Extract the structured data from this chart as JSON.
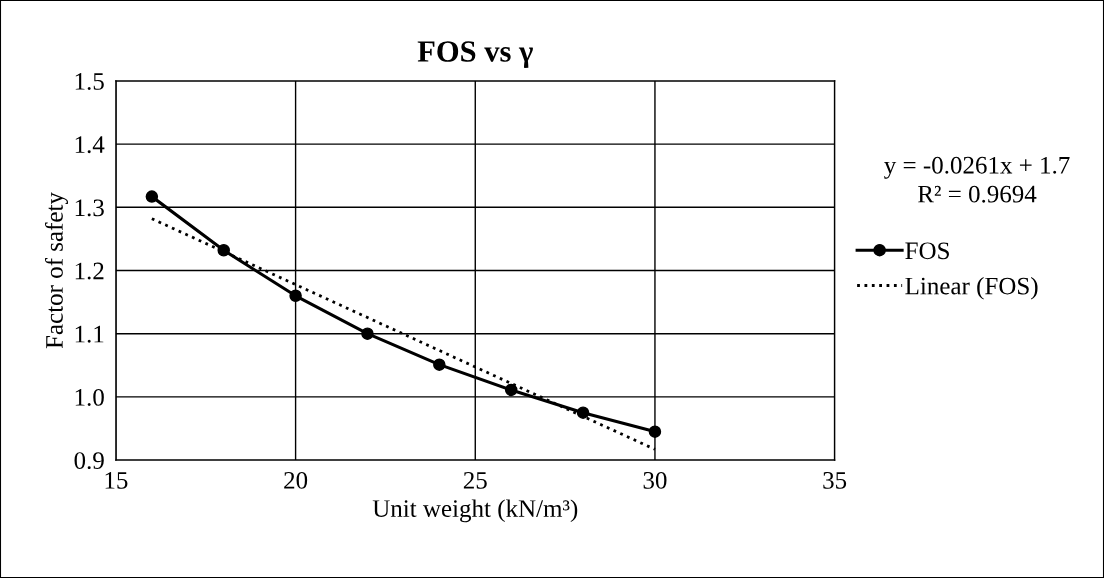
{
  "chart_data": {
    "type": "line",
    "title": "FOS vs γ",
    "xlabel": "Unit weight (kN/m³)",
    "ylabel": "Factor of safety",
    "series": [
      {
        "name": "FOS",
        "color": "#000000",
        "x": [
          16,
          18,
          20,
          22,
          24,
          26,
          28,
          30
        ],
        "values": [
          1.317,
          1.232,
          1.16,
          1.1,
          1.051,
          1.011,
          0.975,
          0.945
        ],
        "marker": "circle",
        "line_style": "solid"
      },
      {
        "name": "Linear (FOS)",
        "color": "#000000",
        "x": [
          16,
          30
        ],
        "values": [
          1.282,
          0.917
        ],
        "marker": "none",
        "line_style": "dotted"
      }
    ],
    "annotations": [
      "y = -0.0261x + 1.7",
      "R² = 0.9694"
    ],
    "xlim": [
      15,
      35
    ],
    "xticks": [
      15,
      20,
      25,
      30,
      35
    ],
    "ylim": [
      0.9,
      1.5
    ],
    "yticks": [
      {
        "value": 0.9,
        "label": "0.9"
      },
      {
        "value": 1.0,
        "label": "1.0"
      },
      {
        "value": 1.1,
        "label": "1.1"
      },
      {
        "value": 1.2,
        "label": "1.2"
      },
      {
        "value": 1.3,
        "label": "1.3"
      },
      {
        "value": 1.4,
        "label": "1.4"
      },
      {
        "value": 1.5,
        "label": "1.5"
      }
    ],
    "grid": true,
    "legend": "right"
  }
}
